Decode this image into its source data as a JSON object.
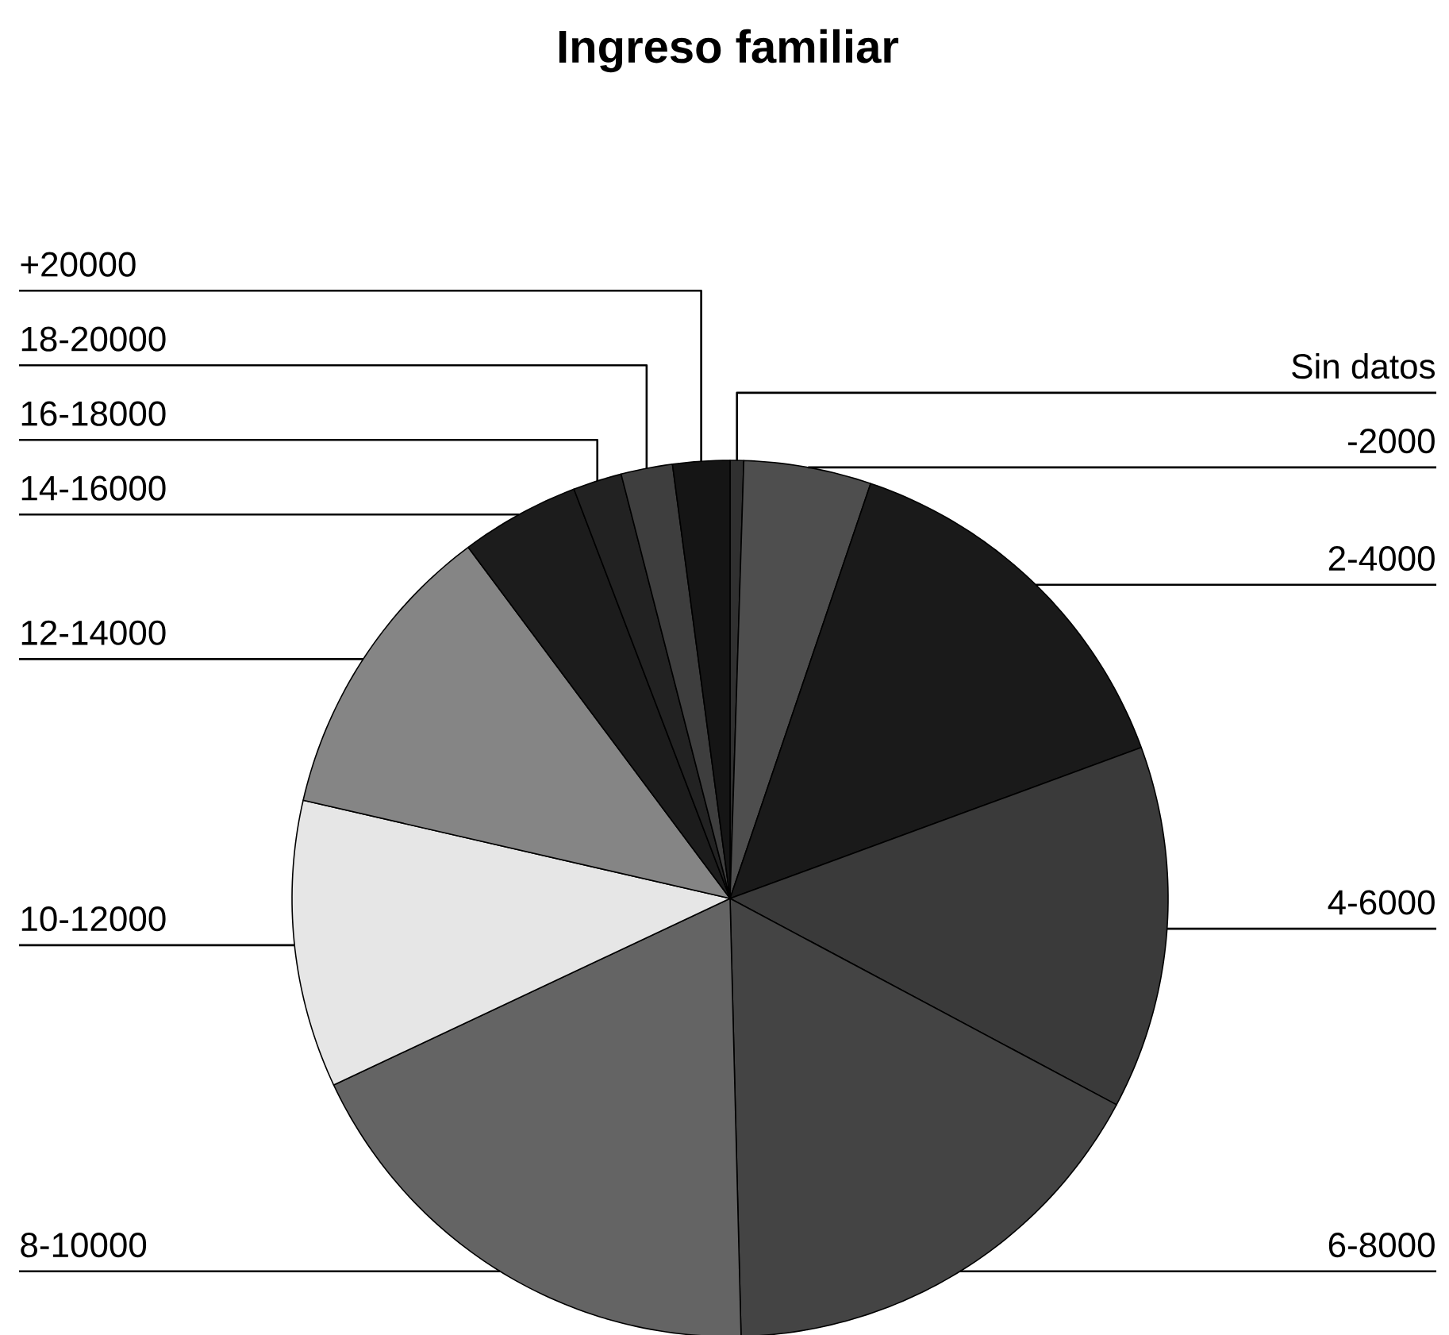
{
  "chart_data": {
    "type": "pie",
    "title": "Ingreso familiar",
    "categories": [
      "Sin datos",
      "-2000",
      "2-4000",
      "4-6000",
      "6-8000",
      "8-10000",
      "10-12000",
      "12-14000",
      "14-16000",
      "16-18000",
      "18-20000",
      "+20000"
    ],
    "values": [
      0.5,
      4.7,
      14.2,
      13.4,
      16.8,
      18.4,
      10.6,
      11.2,
      4.4,
      1.8,
      1.9,
      2.1
    ],
    "colors": [
      "#303030",
      "#4e4e4e",
      "#1a1a1a",
      "#3a3a3a",
      "#444444",
      "#646464",
      "#e6e6e6",
      "#858585",
      "#1c1c1c",
      "#222222",
      "#3e3e3e",
      "#151515"
    ]
  }
}
